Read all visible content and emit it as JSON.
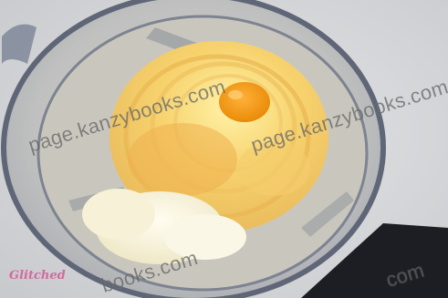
{
  "image": {
    "subject": "food processor bowl with sliced potato spirals and cheese, viewed from above"
  },
  "watermarks": [
    {
      "text": "page.kanzybooks.com"
    },
    {
      "text": "page.kanzybooks.com"
    },
    {
      "text": "books.com"
    },
    {
      "text": "com"
    }
  ],
  "brand_logo": {
    "text": "Glitched"
  },
  "colors": {
    "background": "#d7d9dc",
    "bowl_rim": "#6d7486",
    "potato": "#f2c45a",
    "cheese": "#f7f3dc",
    "yolk": "#f49a12",
    "brand": "#d46a9f"
  }
}
